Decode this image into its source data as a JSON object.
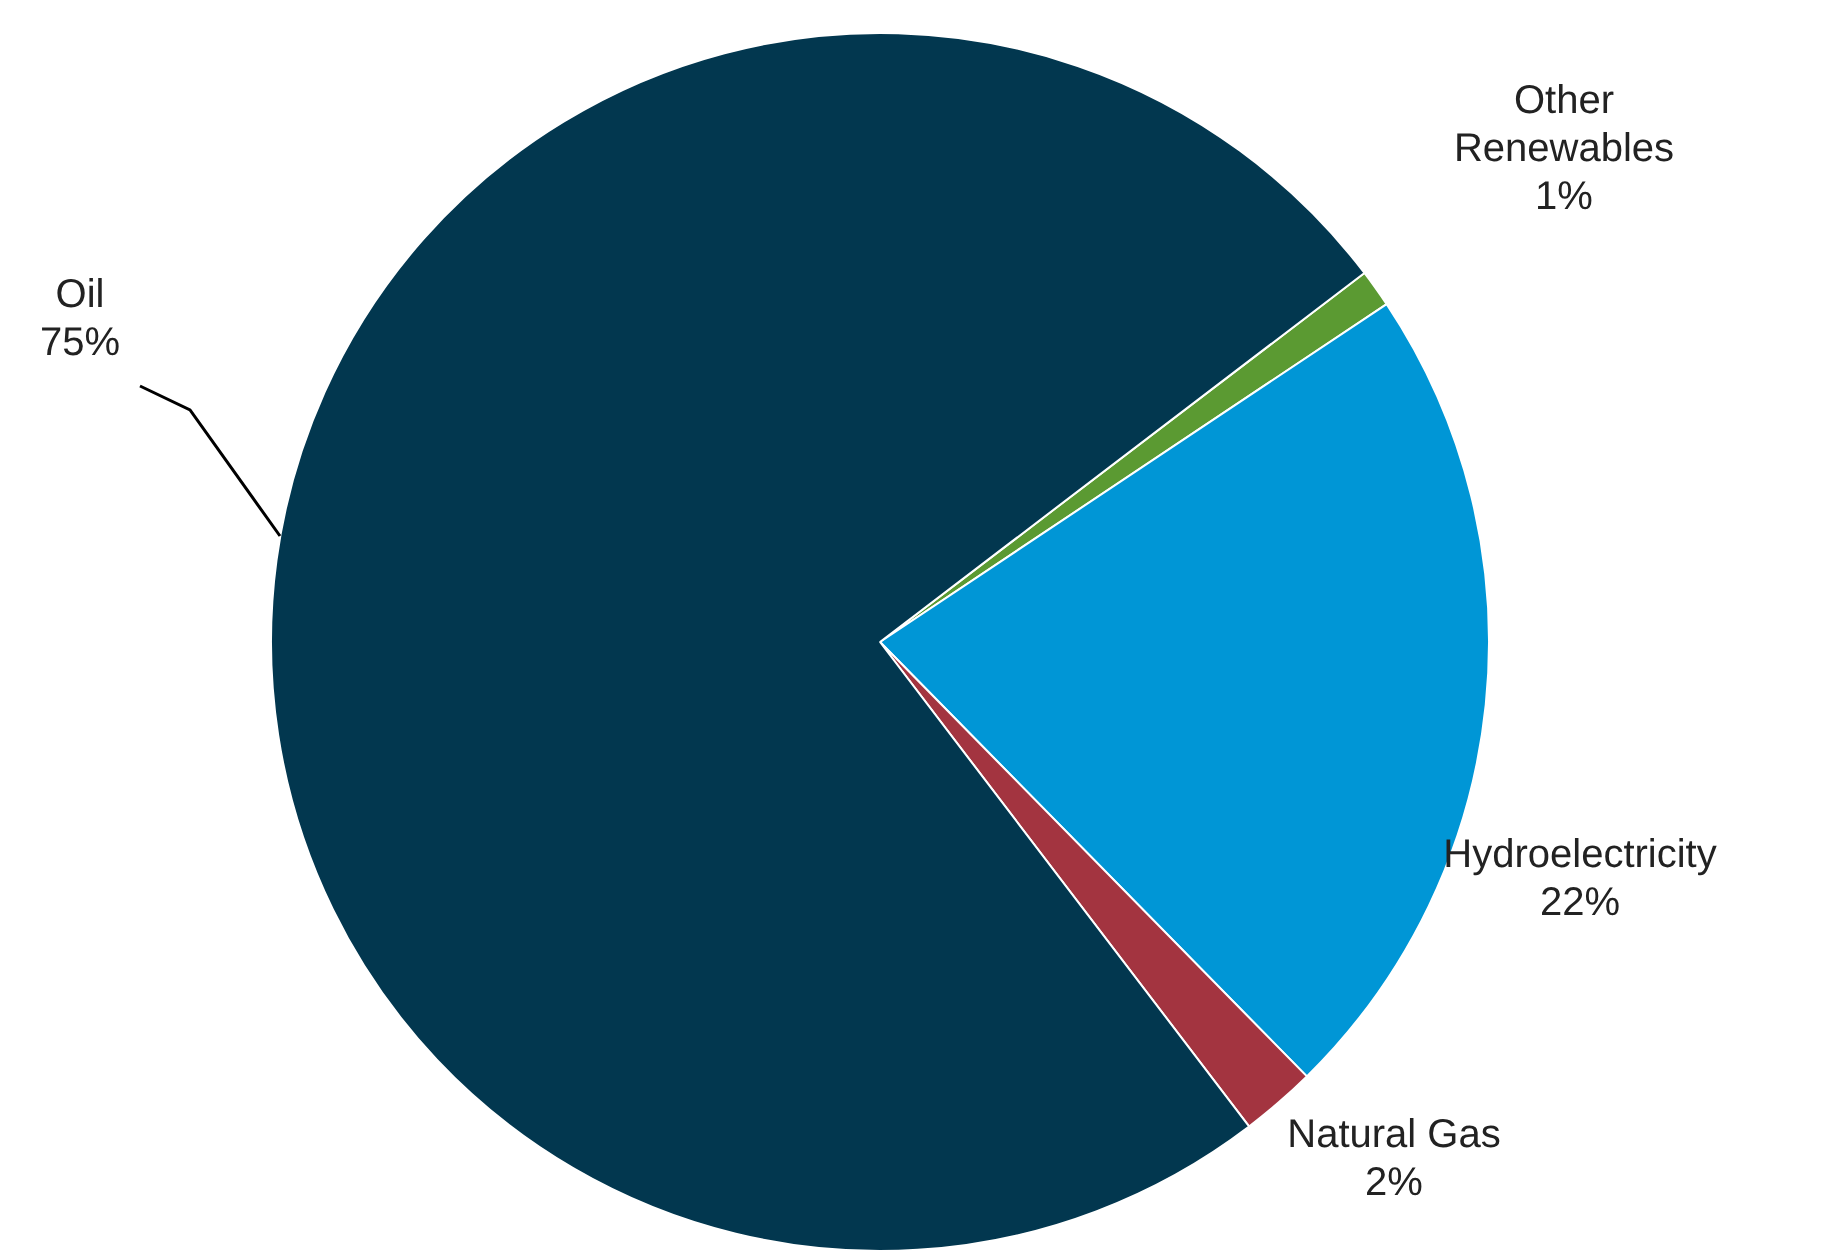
{
  "chart_data": {
    "type": "pie",
    "categories": [
      "Other Renewables",
      "Hydroelectricity",
      "Natural Gas",
      "Oil"
    ],
    "values": [
      1,
      22,
      2,
      75
    ],
    "colors": [
      "#5b9a32",
      "#0096d6",
      "#a33440",
      "#02374f"
    ],
    "value_labels": [
      "1%",
      "22%",
      "2%",
      "75%"
    ],
    "legend": false
  }
}
